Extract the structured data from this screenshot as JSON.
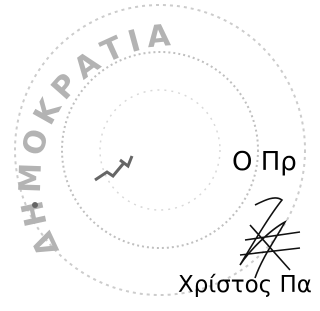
{
  "stamp": {
    "text": "ΔΗΜΟΚΡΑΤΙΑ"
  },
  "signatory": {
    "title": "Ο Πρ",
    "name": "Χρίστος Πα"
  }
}
